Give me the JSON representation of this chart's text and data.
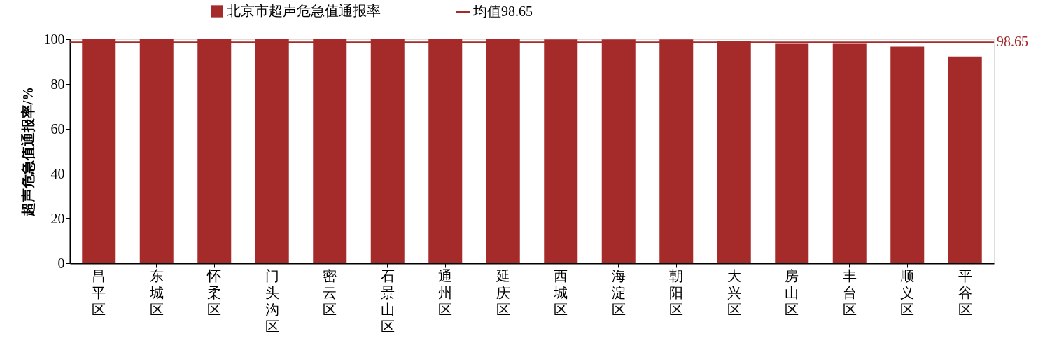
{
  "chart_data": {
    "type": "bar",
    "ylabel": "超声危急值通报率/%",
    "categories": [
      "昌平区",
      "东城区",
      "怀柔区",
      "门头沟区",
      "密云区",
      "石景山区",
      "通州区",
      "延庆区",
      "西城区",
      "海淀区",
      "朝阳区",
      "大兴区",
      "房山区",
      "丰台区",
      "顺义区",
      "平谷区"
    ],
    "series": [
      {
        "name": "北京市超声危急值通报率",
        "color": "#a52a2a",
        "values": [
          100,
          100,
          100,
          100,
          100,
          100,
          100,
          100,
          99.9,
          99.9,
          99.9,
          99.2,
          98.0,
          98.0,
          96.7,
          92.3
        ]
      }
    ],
    "ylim": [
      0,
      100
    ],
    "yticks": [
      0,
      20,
      40,
      60,
      80,
      100
    ],
    "ref_lines": [
      {
        "axis": "y",
        "value": 98.65,
        "label": "均值98.65",
        "color": "#a52a2a",
        "line_style": "solid"
      }
    ],
    "annotations": [
      "98.65"
    ],
    "legend": "top",
    "grid": false
  }
}
